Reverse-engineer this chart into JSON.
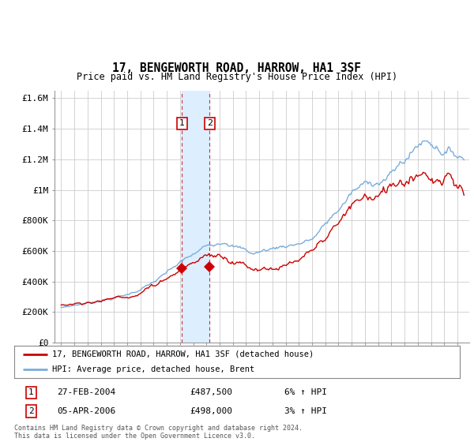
{
  "title": "17, BENGEWORTH ROAD, HARROW, HA1 3SF",
  "subtitle": "Price paid vs. HM Land Registry's House Price Index (HPI)",
  "title_fontsize": 10.5,
  "subtitle_fontsize": 9,
  "ylim": [
    0,
    1650000
  ],
  "yticks": [
    0,
    200000,
    400000,
    600000,
    800000,
    1000000,
    1200000,
    1400000,
    1600000
  ],
  "ytick_labels": [
    "£0",
    "£200K",
    "£400K",
    "£600K",
    "£800K",
    "£1M",
    "£1.2M",
    "£1.4M",
    "£1.6M"
  ],
  "line_color_property": "#cc0000",
  "line_color_hpi": "#7aaddc",
  "xlim_min": 1994.5,
  "xlim_max": 2025.9,
  "sale1_x": 2004.15,
  "sale1_y": 487500,
  "sale2_x": 2006.25,
  "sale2_y": 498000,
  "sale1_label": "27-FEB-2004",
  "sale1_price": "£487,500",
  "sale1_hpi": "6% ↑ HPI",
  "sale2_label": "05-APR-2006",
  "sale2_price": "£498,000",
  "sale2_hpi": "3% ↑ HPI",
  "legend_property": "17, BENGEWORTH ROAD, HARROW, HA1 3SF (detached house)",
  "legend_hpi": "HPI: Average price, detached house, Brent",
  "footnote": "Contains HM Land Registry data © Crown copyright and database right 2024.\nThis data is licensed under the Open Government Licence v3.0.",
  "background_color": "#ffffff",
  "grid_color": "#cccccc",
  "shade_color": "#ddeeff"
}
